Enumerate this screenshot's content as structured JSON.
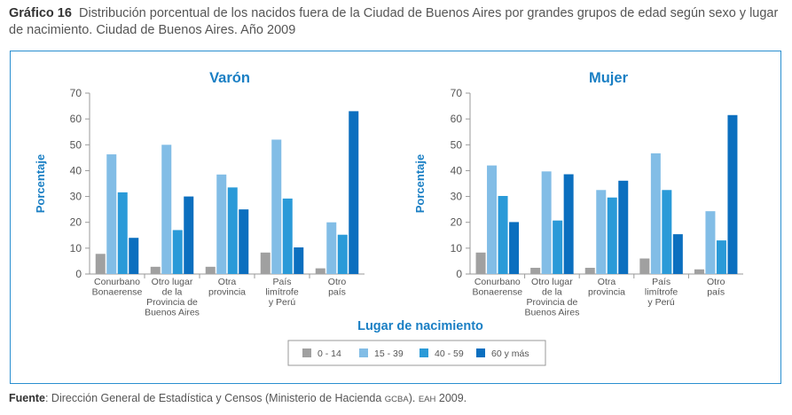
{
  "title": {
    "label": "Gráfico 16",
    "text": "Distribución porcentual de los nacidos fuera de la Ciudad de Buenos Aires por grandes grupos de edad según sexo y lugar de nacimiento. Ciudad de Buenos Aires. Año 2009"
  },
  "source": {
    "label": "Fuente",
    "pre": ": Dirección General de Estadística y Censos (Ministerio de Hacienda ",
    "gcba": "GCBA",
    "mid": "). ",
    "eah": "EAH",
    "post": " 2009."
  },
  "colors": {
    "frame": "#2a8fd0",
    "title_accent": "#1a7fc4",
    "series": [
      "#a0a0a0",
      "#82bde6",
      "#2a9ad8",
      "#0b6fbf"
    ]
  },
  "chart_data": [
    {
      "type": "bar",
      "title": "Varón",
      "xlabel": "Lugar de nacimiento",
      "ylabel": "Porcentaje",
      "ylim": [
        0,
        70
      ],
      "yticks": [
        0,
        10,
        20,
        30,
        40,
        50,
        60,
        70
      ],
      "grid": false,
      "categories": [
        [
          "Conurbano",
          "Bonaerense"
        ],
        [
          "Otro lugar",
          "de la",
          "Provincia de",
          "Buenos Aires"
        ],
        [
          "Otra",
          "provincia"
        ],
        [
          "País",
          "limítrofe",
          "y Perú"
        ],
        [
          "Otro",
          "país"
        ]
      ],
      "series": [
        {
          "name": "0 - 14",
          "values": [
            7.8,
            2.8,
            2.8,
            8.3,
            2.2
          ]
        },
        {
          "name": "15 - 39",
          "values": [
            46.3,
            50.0,
            38.5,
            52.0,
            20.0
          ]
        },
        {
          "name": "40 - 59",
          "values": [
            31.6,
            17.0,
            33.5,
            29.2,
            15.2
          ]
        },
        {
          "name": "60  y más",
          "values": [
            14.0,
            30.0,
            25.0,
            10.3,
            63.0
          ]
        }
      ]
    },
    {
      "type": "bar",
      "title": "Mujer",
      "xlabel": "Lugar de nacimiento",
      "ylabel": "Porcentaje",
      "ylim": [
        0,
        70
      ],
      "yticks": [
        0,
        10,
        20,
        30,
        40,
        50,
        60,
        70
      ],
      "grid": false,
      "categories": [
        [
          "Conurbano",
          "Bonaerense"
        ],
        [
          "Otro lugar",
          "de la",
          "Provincia de",
          "Buenos Aires"
        ],
        [
          "Otra",
          "provincia"
        ],
        [
          "País",
          "limítrofe",
          "y Perú"
        ],
        [
          "Otro",
          "país"
        ]
      ],
      "series": [
        {
          "name": "0 - 14",
          "values": [
            8.3,
            2.4,
            2.4,
            6.0,
            1.8
          ]
        },
        {
          "name": "15 - 39",
          "values": [
            42.0,
            39.7,
            32.5,
            46.7,
            24.3
          ]
        },
        {
          "name": "40 - 59",
          "values": [
            30.2,
            20.7,
            29.6,
            32.5,
            13.0
          ]
        },
        {
          "name": "60  y más",
          "values": [
            20.1,
            38.6,
            36.1,
            15.4,
            61.5
          ]
        }
      ]
    }
  ],
  "legend": {
    "placement": "bottom",
    "labels": [
      "0 - 14",
      "15 - 39",
      "40 - 59",
      "60  y más"
    ]
  },
  "shared_xlabel": "Lugar de nacimiento"
}
